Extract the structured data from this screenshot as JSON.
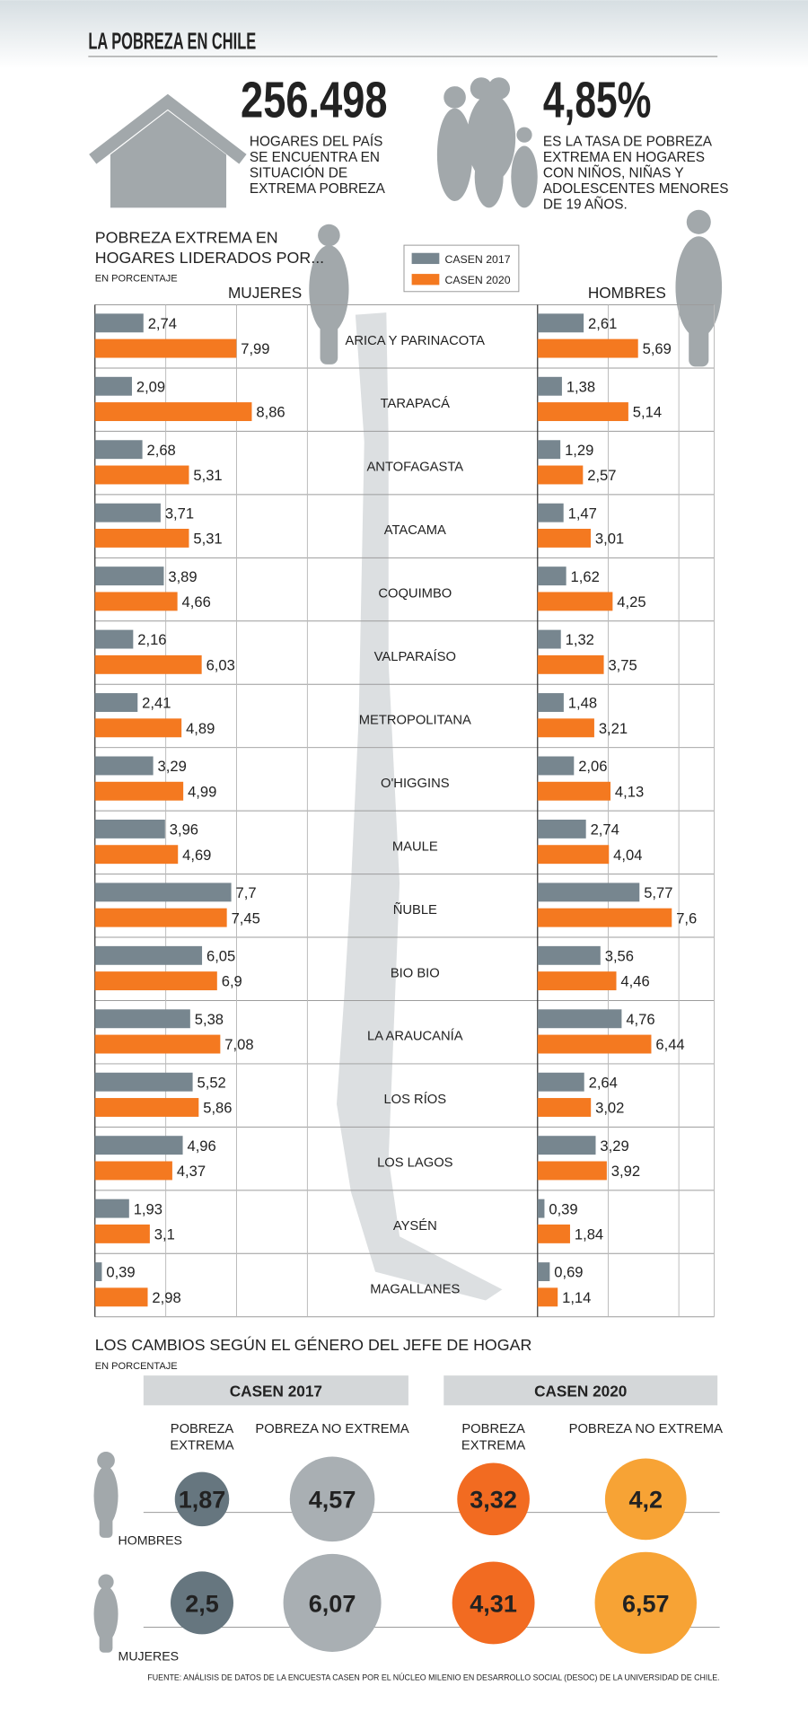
{
  "title": "LA POBREZA EN CHILE",
  "stats": [
    {
      "value": "256.498",
      "lines": [
        "HOGARES DEL PAÍS",
        "SE ENCUENTRA EN",
        "SITUACIÓN DE",
        "EXTREMA POBREZA"
      ]
    },
    {
      "value": "4,85%",
      "lines": [
        "ES LA TASA DE POBREZA",
        "EXTREMA EN HOGARES",
        "CON NIÑOS, NIÑAS Y",
        "ADOLESCENTES MENORES",
        "DE 19 AÑOS."
      ]
    }
  ],
  "chart_data": [
    {
      "type": "bar",
      "title_lines": [
        "POBREZA EXTREMA EN",
        "HOGARES LIDERADOS POR..."
      ],
      "subtitle": "EN PORCENTAJE",
      "legend": [
        {
          "name": "CASEN 2017",
          "color": "#77868f"
        },
        {
          "name": "CASEN 2020",
          "color": "#f47920"
        }
      ],
      "categories": [
        "ARICA Y PARINACOTA",
        "TARAPACÁ",
        "ANTOFAGASTA",
        "ATACAMA",
        "COQUIMBO",
        "VALPARAÍSO",
        "METROPOLITANA",
        "O'HIGGINS",
        "MAULE",
        "ÑUBLE",
        "BIO BIO",
        "LA ARAUCANÍA",
        "LOS RÍOS",
        "LOS LAGOS",
        "AYSÉN",
        "MAGALLANES"
      ],
      "panels": [
        {
          "title": "MUJERES",
          "xlim": [
            0,
            25
          ],
          "xticks": [
            0,
            4,
            8,
            12
          ],
          "series": [
            {
              "values": [
                2.74,
                2.09,
                2.68,
                3.71,
                3.89,
                2.16,
                2.41,
                3.29,
                3.96,
                7.7,
                6.05,
                5.38,
                5.52,
                4.96,
                1.93,
                0.39
              ],
              "value_labels": [
                "2,74",
                "2,09",
                "2,68",
                "3,71",
                "3,89",
                "2,16",
                "2,41",
                "3,29",
                "3,96",
                "7,7",
                "6,05",
                "5,38",
                "5,52",
                "4,96",
                "1,93",
                "0,39"
              ]
            },
            {
              "values": [
                7.99,
                8.86,
                5.31,
                5.31,
                4.66,
                6.03,
                4.89,
                4.99,
                4.69,
                7.45,
                6.9,
                7.08,
                5.86,
                4.37,
                3.1,
                2.98
              ],
              "value_labels": [
                "7,99",
                "8,86",
                "5,31",
                "5,31",
                "4,66",
                "6,03",
                "4,89",
                "4,99",
                "4,69",
                "7,45",
                "6,9",
                "7,08",
                "5,86",
                "4,37",
                "3,1",
                "2,98"
              ]
            }
          ]
        },
        {
          "title": "HOMBRES",
          "xlim": [
            0,
            10
          ],
          "xticks": [
            0,
            4,
            8
          ],
          "series": [
            {
              "values": [
                2.61,
                1.38,
                1.29,
                1.47,
                1.62,
                1.32,
                1.48,
                2.06,
                2.74,
                5.77,
                3.56,
                4.76,
                2.64,
                3.29,
                0.39,
                0.69
              ],
              "value_labels": [
                "2,61",
                "1,38",
                "1,29",
                "1,47",
                "1,62",
                "1,32",
                "1,48",
                "2,06",
                "2,74",
                "5,77",
                "3,56",
                "4,76",
                "2,64",
                "3,29",
                "0,39",
                "0,69"
              ]
            },
            {
              "values": [
                5.69,
                5.14,
                2.57,
                3.01,
                4.25,
                3.75,
                3.21,
                4.13,
                4.04,
                7.6,
                4.46,
                6.44,
                3.02,
                3.92,
                1.84,
                1.14
              ],
              "value_labels": [
                "5,69",
                "5,14",
                "2,57",
                "3,01",
                "4,25",
                "3,75",
                "3,21",
                "4,13",
                "4,04",
                "7,6",
                "4,46",
                "6,44",
                "3,02",
                "3,92",
                "1,84",
                "1,14"
              ]
            }
          ]
        }
      ]
    },
    {
      "type": "bubble",
      "title": "LOS CAMBIOS SEGÚN EL GÉNERO DEL JEFE DE HOGAR",
      "subtitle": "EN PORCENTAJE",
      "rows": [
        "HOMBRES",
        "MUJERES"
      ],
      "groups": [
        {
          "name": "CASEN 2017",
          "columns": [
            {
              "label_lines": [
                "POBREZA",
                "EXTREMA"
              ],
              "color": "#66767f"
            },
            {
              "label_lines": [
                "POBREZA NO EXTREMA"
              ],
              "color": "#a9afb3"
            }
          ],
          "values": [
            [
              1.87,
              4.57
            ],
            [
              2.5,
              6.07
            ]
          ],
          "value_labels": [
            [
              "1,87",
              "4,57"
            ],
            [
              "2,5",
              "6,07"
            ]
          ]
        },
        {
          "name": "CASEN 2020",
          "columns": [
            {
              "label_lines": [
                "POBREZA",
                "EXTREMA"
              ],
              "color": "#f26b21"
            },
            {
              "label_lines": [
                "POBREZA NO EXTREMA"
              ],
              "color": "#f7a335"
            }
          ],
          "values": [
            [
              3.32,
              4.2
            ],
            [
              4.31,
              6.57
            ]
          ],
          "value_labels": [
            [
              "3,32",
              "4,2"
            ],
            [
              "4,31",
              "6,57"
            ]
          ]
        }
      ]
    }
  ],
  "source": "FUENTE: ANÁLISIS DE DATOS DE LA ENCUESTA CASEN POR EL NÚCLEO MILENIO EN DESARROLLO SOCIAL (DESOC) DE LA UNIVERSIDAD DE CHILE."
}
